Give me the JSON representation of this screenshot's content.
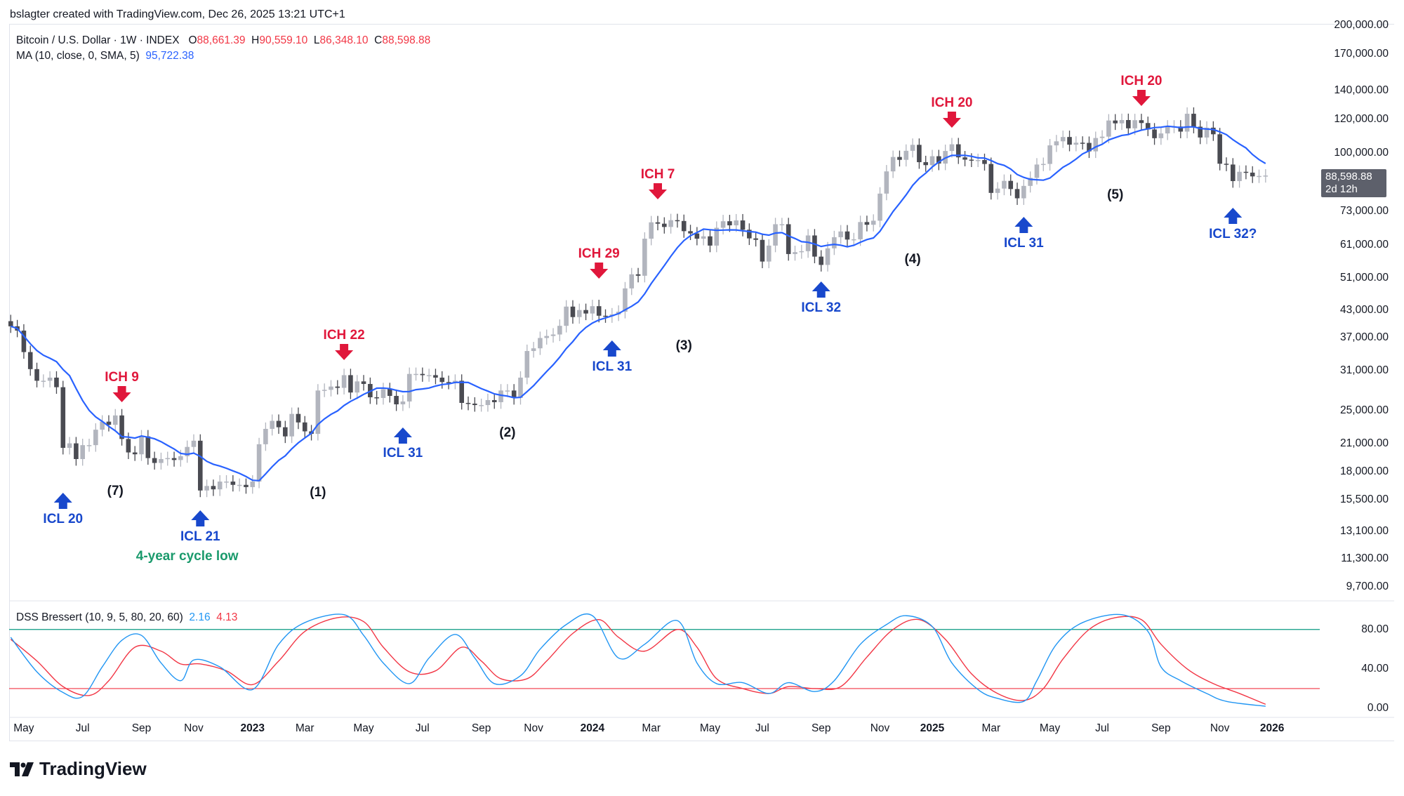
{
  "credit": "bslagter created with TradingView.com, Dec 26, 2025 13:21 UTC+1",
  "legend": {
    "symbol": "Bitcoin / U.S. Dollar · 1W · INDEX",
    "o_label": "O",
    "o": "88,661.39",
    "h_label": "H",
    "h": "90,559.10",
    "l_label": "L",
    "l": "86,348.10",
    "c_label": "C",
    "c": "88,598.88",
    "ma_label": "MA (10, close, 0, SMA, 5)",
    "ma_value": "95,722.38",
    "dss_label": "DSS Bressert (10, 9, 5, 80, 20, 60)",
    "dss_v1": "2.16",
    "dss_v2": "4.13"
  },
  "last_price": {
    "price": "88,598.88",
    "countdown": "2d 12h"
  },
  "logo": "TradingView",
  "colors": {
    "up": "#b2b5be",
    "down": "#4a4b52",
    "ma": "#2962ff",
    "ich": "#e0173b",
    "icl": "#1848cc",
    "cycle": "#f7a21b",
    "note": "#1a9a6c",
    "dss1": "#2196f3",
    "dss2": "#f23645",
    "upper": "#089981",
    "lower": "#f23645"
  },
  "chart_data": [
    {
      "type": "candlestick",
      "title": "Bitcoin / U.S. Dollar · 1W · INDEX",
      "scale": "log",
      "ylim": [
        9000,
        200000
      ],
      "first_week": "2022-04-18",
      "price_ticks": [
        "200,000.00",
        "170,000.00",
        "140,000.00",
        "120,000.00",
        "100,000.00",
        "73,000.00",
        "61,000.00",
        "51,000.00",
        "43,000.00",
        "37,000.00",
        "31,000.00",
        "25,000.00",
        "21,000.00",
        "18,000.00",
        "15,500.00",
        "13,100.00",
        "11,300.00",
        "9,700.00"
      ],
      "closes": [
        39400,
        38500,
        34300,
        31300,
        29400,
        29400,
        29900,
        28400,
        20500,
        21000,
        19300,
        20800,
        20800,
        22600,
        23600,
        23200,
        24400,
        21500,
        20000,
        19800,
        21800,
        19400,
        18900,
        19300,
        19400,
        19200,
        19600,
        20600,
        21300,
        16300,
        16700,
        16400,
        17100,
        17100,
        16800,
        16800,
        16600,
        17100,
        20900,
        22700,
        23700,
        22900,
        21800,
        24600,
        23500,
        22400,
        22100,
        27900,
        28000,
        28500,
        28300,
        30300,
        27600,
        29300,
        28900,
        26900,
        26800,
        28100,
        27100,
        25900,
        26300,
        30500,
        30500,
        30300,
        30300,
        29900,
        29200,
        29100,
        29400,
        26100,
        26000,
        25800,
        25800,
        26500,
        26200,
        27900,
        27900,
        26800,
        29900,
        34500,
        35000,
        37000,
        37400,
        37700,
        39500,
        43800,
        41400,
        43000,
        42200,
        43900,
        41700,
        41600,
        42000,
        42600,
        48300,
        52100,
        51700,
        63100,
        68900,
        68400,
        67200,
        69700,
        69400,
        65700,
        64900,
        63100,
        63900,
        60800,
        66900,
        69300,
        67800,
        69600,
        66200,
        63200,
        62700,
        55800,
        60800,
        68200,
        68200,
        58100,
        58700,
        59000,
        64200,
        57300,
        54800,
        59900,
        63600,
        65600,
        62800,
        62900,
        69000,
        68000,
        69500,
        80400,
        90600,
        97900,
        96400,
        101200,
        104500,
        95200,
        93700,
        98300,
        94500,
        101100,
        104800,
        97700,
        96500,
        96100,
        96300,
        94300,
        80700,
        82600,
        86100,
        82400,
        78400,
        83800,
        87500,
        94000,
        94300,
        104200,
        106500,
        109000,
        104600,
        105700,
        105600,
        100900,
        108400,
        109200,
        119100,
        117300,
        119400,
        114200,
        119300,
        117500,
        113500,
        108300,
        111100,
        115300,
        115300,
        112200,
        123500,
        115200,
        108700,
        114600,
        110600,
        94400,
        94000,
        86000,
        90400,
        90000,
        88200,
        88400,
        88598.88
      ],
      "ma": {
        "name": "MA (10, close, 0, SMA, 5)",
        "length": 10
      },
      "time_ticks": [
        {
          "label": "May",
          "week": 2
        },
        {
          "label": "Jul",
          "week": 11
        },
        {
          "label": "Sep",
          "week": 20
        },
        {
          "label": "Nov",
          "week": 28
        },
        {
          "label": "2023",
          "week": 37,
          "year": true
        },
        {
          "label": "Mar",
          "week": 45
        },
        {
          "label": "May",
          "week": 54
        },
        {
          "label": "Jul",
          "week": 63
        },
        {
          "label": "Sep",
          "week": 72
        },
        {
          "label": "Nov",
          "week": 80
        },
        {
          "label": "2024",
          "week": 89,
          "year": true
        },
        {
          "label": "Mar",
          "week": 98
        },
        {
          "label": "May",
          "week": 107
        },
        {
          "label": "Jul",
          "week": 115
        },
        {
          "label": "Sep",
          "week": 124
        },
        {
          "label": "Nov",
          "week": 133
        },
        {
          "label": "2025",
          "week": 141,
          "year": true
        },
        {
          "label": "Mar",
          "week": 150
        },
        {
          "label": "May",
          "week": 159
        },
        {
          "label": "Jul",
          "week": 167
        },
        {
          "label": "Sep",
          "week": 176
        },
        {
          "label": "Nov",
          "week": 185
        },
        {
          "label": "2026",
          "week": 193,
          "year": true
        }
      ],
      "annotations": [
        {
          "kind": "icl",
          "text": "ICL 20",
          "week": 8
        },
        {
          "kind": "ich",
          "text": "ICH 9",
          "week": 17
        },
        {
          "kind": "cycle",
          "text": "(7)",
          "week": 16
        },
        {
          "kind": "icl",
          "text": "ICL 21",
          "week": 29
        },
        {
          "kind": "note",
          "text": "4-year cycle low",
          "week": 27
        },
        {
          "kind": "cycle",
          "text": "(1)",
          "week": 47
        },
        {
          "kind": "ich",
          "text": "ICH 22",
          "week": 51
        },
        {
          "kind": "icl",
          "text": "ICL 31",
          "week": 60
        },
        {
          "kind": "cycle",
          "text": "(2)",
          "week": 76
        },
        {
          "kind": "ich",
          "text": "ICH 29",
          "week": 90
        },
        {
          "kind": "icl",
          "text": "ICL 31",
          "week": 92
        },
        {
          "kind": "cycle",
          "text": "(3)",
          "week": 103
        },
        {
          "kind": "ich",
          "text": "ICH 7",
          "week": 99
        },
        {
          "kind": "icl",
          "text": "ICL 32",
          "week": 124
        },
        {
          "kind": "cycle",
          "text": "(4)",
          "week": 138
        },
        {
          "kind": "ich",
          "text": "ICH 20",
          "week": 144
        },
        {
          "kind": "icl",
          "text": "ICL 31",
          "week": 155
        },
        {
          "kind": "cycle",
          "text": "(5)",
          "week": 169
        },
        {
          "kind": "ich",
          "text": "ICH 20",
          "week": 173
        },
        {
          "kind": "icl",
          "text": "ICL 32?",
          "week": 187
        }
      ]
    },
    {
      "type": "line",
      "title": "DSS Bressert (10, 9, 5, 80, 20, 60)",
      "ylim": [
        -5,
        105
      ],
      "levels": {
        "upper": 80,
        "lower": 20
      },
      "y_ticks": [
        "80.00",
        "40.00",
        "0.00"
      ],
      "series": [
        {
          "name": "DSS",
          "last": 2.16,
          "points": [
            [
              0,
              72
            ],
            [
              4,
              37
            ],
            [
              8,
              16
            ],
            [
              11,
              12
            ],
            [
              14,
              42
            ],
            [
              17,
              69
            ],
            [
              20,
              74
            ],
            [
              23,
              46
            ],
            [
              26,
              28
            ],
            [
              28,
              49
            ],
            [
              32,
              42
            ],
            [
              37,
              19
            ],
            [
              41,
              65
            ],
            [
              45,
              87
            ],
            [
              51,
              95
            ],
            [
              54,
              74
            ],
            [
              57,
              46
            ],
            [
              61,
              25
            ],
            [
              64,
              51
            ],
            [
              68,
              75
            ],
            [
              71,
              51
            ],
            [
              74,
              25
            ],
            [
              78,
              33
            ],
            [
              81,
              60
            ],
            [
              85,
              85
            ],
            [
              89,
              94
            ],
            [
              93,
              51
            ],
            [
              97,
              65
            ],
            [
              102,
              89
            ],
            [
              105,
              46
            ],
            [
              108,
              25
            ],
            [
              112,
              26
            ],
            [
              116,
              15
            ],
            [
              119,
              26
            ],
            [
              123,
              17
            ],
            [
              126,
              28
            ],
            [
              130,
              65
            ],
            [
              134,
              85
            ],
            [
              137,
              94
            ],
            [
              141,
              83
            ],
            [
              144,
              46
            ],
            [
              148,
              19
            ],
            [
              151,
              10
            ],
            [
              155,
              7
            ],
            [
              157,
              28
            ],
            [
              160,
              65
            ],
            [
              164,
              87
            ],
            [
              170,
              95
            ],
            [
              174,
              78
            ],
            [
              176,
              42
            ],
            [
              179,
              28
            ],
            [
              183,
              15
            ],
            [
              186,
              7
            ],
            [
              192,
              2
            ]
          ]
        },
        {
          "name": "Signal",
          "last": 4.13,
          "points": [
            [
              0,
              70
            ],
            [
              4,
              48
            ],
            [
              8,
              22
            ],
            [
              12,
              13
            ],
            [
              15,
              28
            ],
            [
              19,
              62
            ],
            [
              23,
              58
            ],
            [
              26,
              45
            ],
            [
              29,
              45
            ],
            [
              33,
              38
            ],
            [
              37,
              24
            ],
            [
              41,
              48
            ],
            [
              45,
              78
            ],
            [
              50,
              92
            ],
            [
              54,
              88
            ],
            [
              57,
              62
            ],
            [
              61,
              37
            ],
            [
              65,
              38
            ],
            [
              69,
              62
            ],
            [
              72,
              48
            ],
            [
              75,
              30
            ],
            [
              79,
              30
            ],
            [
              82,
              48
            ],
            [
              86,
              76
            ],
            [
              90,
              90
            ],
            [
              93,
              72
            ],
            [
              97,
              58
            ],
            [
              102,
              80
            ],
            [
              105,
              62
            ],
            [
              108,
              30
            ],
            [
              112,
              20
            ],
            [
              116,
              15
            ],
            [
              119,
              22
            ],
            [
              123,
              20
            ],
            [
              127,
              22
            ],
            [
              131,
              52
            ],
            [
              135,
              80
            ],
            [
              139,
              90
            ],
            [
              143,
              70
            ],
            [
              147,
              35
            ],
            [
              151,
              15
            ],
            [
              155,
              8
            ],
            [
              158,
              20
            ],
            [
              161,
              50
            ],
            [
              165,
              80
            ],
            [
              169,
              92
            ],
            [
              173,
              90
            ],
            [
              176,
              65
            ],
            [
              180,
              40
            ],
            [
              184,
              25
            ],
            [
              188,
              15
            ],
            [
              192,
              4
            ]
          ]
        }
      ]
    }
  ]
}
